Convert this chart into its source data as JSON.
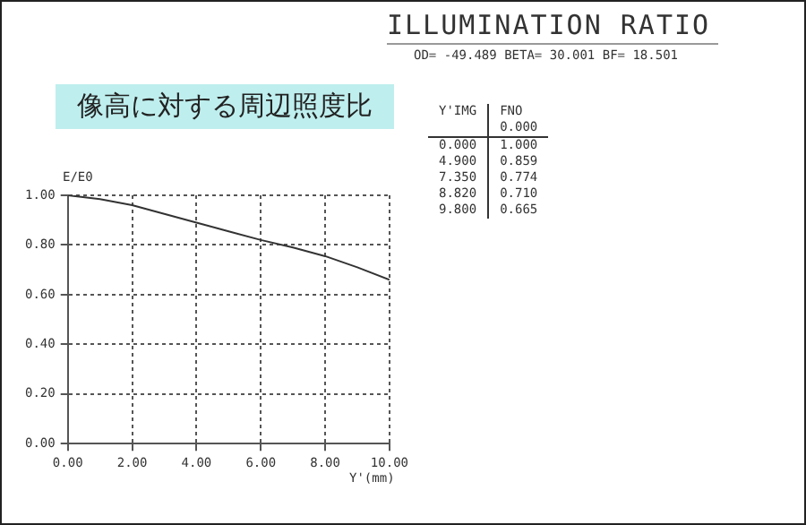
{
  "chart_data": {
    "type": "line",
    "title": "ILLUMINATION RATIO",
    "subtitle": "OD= -49.489 BETA= 30.001 BF= 18.501",
    "xlabel": "Y'(mm)",
    "ylabel": "E/E0",
    "annotations": [
      "像高に対する周辺照度比",
      "Y'IMG FNO",
      "0.000",
      "0.000 1.000",
      "4.900 0.859",
      "7.350 0.774",
      "8.820 0.710",
      "9.800 0.665"
    ],
    "x": [
      0,
      1,
      2,
      3,
      4,
      5,
      6,
      7,
      8,
      9,
      10
    ],
    "series": [
      {
        "color": "#333333",
        "values": [
          1.0,
          0.985,
          0.96,
          0.925,
          0.89,
          0.855,
          0.82,
          0.79,
          0.755,
          0.71,
          0.66
        ]
      }
    ],
    "xlim": [
      0,
      10
    ],
    "ylim": [
      0,
      1
    ],
    "xticks": [
      {
        "value": 0,
        "label": "0.00"
      },
      {
        "value": 2,
        "label": "2.00"
      },
      {
        "value": 4,
        "label": "4.00"
      },
      {
        "value": 6,
        "label": "6.00"
      },
      {
        "value": 8,
        "label": "8.00"
      },
      {
        "value": 10,
        "label": "10.00"
      }
    ],
    "yticks": [
      {
        "value": 0,
        "label": "0.00"
      },
      {
        "value": 0.2,
        "label": "0.20"
      },
      {
        "value": 0.4,
        "label": "0.40"
      },
      {
        "value": 0.6,
        "label": "0.60"
      },
      {
        "value": 0.8,
        "label": "0.80"
      },
      {
        "value": 1,
        "label": "1.00"
      }
    ],
    "grid": true,
    "legend": false,
    "marker": "none",
    "line_style": "solid"
  }
}
